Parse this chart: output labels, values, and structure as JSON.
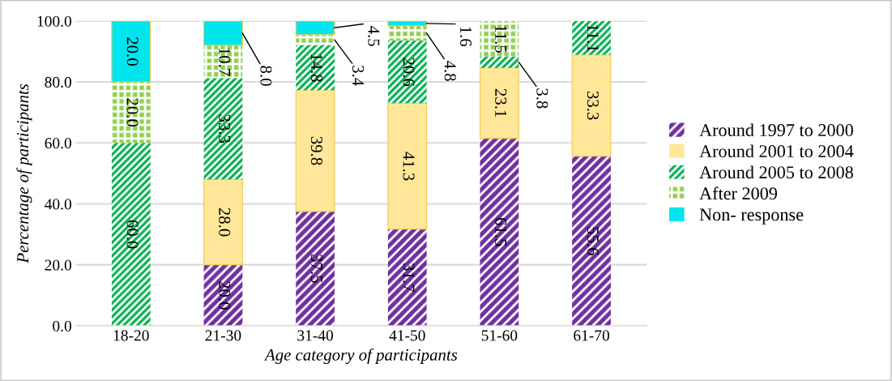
{
  "chart_data": {
    "type": "bar",
    "stacked": true,
    "xlabel": "Age category of participants",
    "ylabel": "Percentage of participants",
    "categories": [
      "18-20",
      "21-30",
      "31-40",
      "41-50",
      "51-60",
      "61-70"
    ],
    "series": [
      {
        "name": "Around 1997 to 2000",
        "color": "#7030a0",
        "values": [
          0,
          20.0,
          37.5,
          31.7,
          61.5,
          55.6
        ],
        "value_labels": [
          null,
          "20.0",
          "37.5",
          "31.7",
          "61.5",
          "55.6"
        ]
      },
      {
        "name": "Around 2001 to 2004",
        "color": "#ffe699",
        "values": [
          0,
          28.0,
          39.8,
          41.3,
          23.1,
          33.3
        ],
        "value_labels": [
          null,
          "28.0",
          "39.8",
          "41.3",
          "23.1",
          "33.3"
        ]
      },
      {
        "name": "Around 2005 to 2008",
        "color": "#00b050",
        "values": [
          60.0,
          33.3,
          14.8,
          20.6,
          3.8,
          11.1
        ],
        "value_labels": [
          "60.0",
          "33.3",
          "14.8",
          "20.6",
          "3.8",
          "11.1"
        ]
      },
      {
        "name": "After 2009",
        "color": "#92d050",
        "values": [
          20.0,
          10.7,
          3.4,
          4.8,
          11.5,
          0
        ],
        "value_labels": [
          "20.0",
          "10.7",
          "3.4",
          "4.8",
          "11.5",
          null
        ]
      },
      {
        "name": "Non- response",
        "color": "#00e5ee",
        "values": [
          20.0,
          8.0,
          4.5,
          1.6,
          0,
          0
        ],
        "value_labels": [
          "20.0",
          "8.0",
          "4.5",
          "1.6",
          null,
          null
        ]
      }
    ],
    "ylim": [
      0,
      100
    ],
    "yticks": [
      {
        "value": 0,
        "label": "0.0"
      },
      {
        "value": 20,
        "label": "20.0"
      },
      {
        "value": 40,
        "label": "40.0"
      },
      {
        "value": 60,
        "label": "60.0"
      },
      {
        "value": 80,
        "label": "80.0"
      },
      {
        "value": 100,
        "label": "100.0"
      }
    ],
    "grid": "y",
    "legend": "right"
  }
}
